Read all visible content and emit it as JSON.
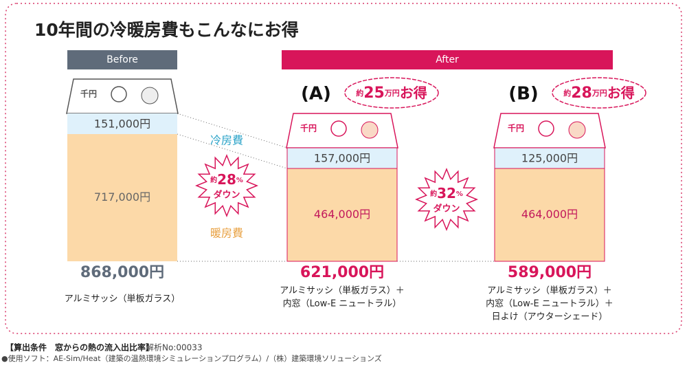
{
  "title": "10年間の冷暖房費もこんなにお得",
  "bill": "千円",
  "before": {
    "header": "Before",
    "cooling": "151,000円",
    "heating": "717,000円",
    "total": "868,000円",
    "caption": [
      "アルミサッシ（単板ガラス）"
    ]
  },
  "after": {
    "header": "After",
    "options": [
      {
        "label": "(A)",
        "badge": {
          "prefix": "約",
          "amount": "25",
          "unit": "万円",
          "suffix": "お得"
        },
        "cooling": "157,000円",
        "heating": "464,000円",
        "total": "621,000円",
        "caption": [
          "アルミサッシ（単板ガラス）＋",
          "内窓（Low-E ニュートラル）"
        ]
      },
      {
        "label": "(B)",
        "badge": {
          "prefix": "約",
          "amount": "28",
          "unit": "万円",
          "suffix": "お得"
        },
        "cooling": "125,000円",
        "heating": "464,000円",
        "total": "589,000円",
        "caption": [
          "アルミサッシ（単板ガラス）＋",
          "内窓（Low-E ニュートラル）＋",
          "日よけ（アウターシェード）"
        ]
      }
    ]
  },
  "legend": {
    "cooling": "冷房費",
    "heating": "暖房費"
  },
  "reductions": [
    {
      "prefix": "約",
      "amount": "28",
      "unit": "%",
      "suffix": "ダウン"
    },
    {
      "prefix": "約",
      "amount": "32",
      "unit": "%",
      "suffix": "ダウン"
    }
  ],
  "footer": {
    "conditions": "【算出条件　窓からの熱の流入出比率】",
    "analysis": "解析No:00033",
    "software": "●使用ソフト：AE-Sim/Heat（建築の温熱環境シミュレーションプログラム）/（株）建築環境ソリューションズ"
  }
}
